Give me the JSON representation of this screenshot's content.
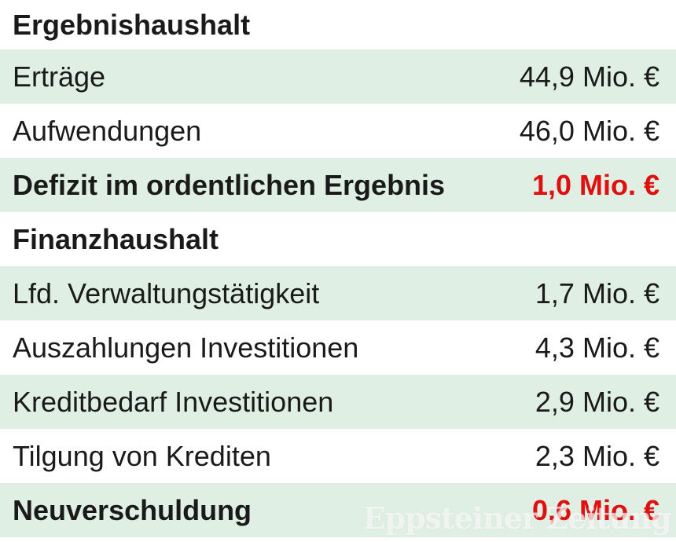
{
  "colors": {
    "row_green": "#e0efe4",
    "text_black": "#1a1a1a",
    "negative_red": "#e01010",
    "watermark_white": "rgba(255,255,255,0.62)"
  },
  "table": {
    "rows": [
      {
        "label": "Ergebnishaushalt",
        "value": ""
      },
      {
        "label": "Erträge",
        "value": "44,9 Mio. €"
      },
      {
        "label": "Aufwendungen",
        "value": "46,0 Mio. €"
      },
      {
        "label": "Defizit im ordentlichen Ergebnis",
        "value": "1,0 Mio. €"
      },
      {
        "label": "Finanzhaushalt",
        "value": ""
      },
      {
        "label": "Lfd. Verwaltungstätigkeit",
        "value": "1,7 Mio. €"
      },
      {
        "label": "Auszahlungen Investitionen",
        "value": "4,3 Mio. €"
      },
      {
        "label": "Kreditbedarf Investitionen",
        "value": "2,9 Mio. €"
      },
      {
        "label": "Tilgung von Krediten",
        "value": "2,3 Mio. €"
      },
      {
        "label": "Neuverschuldung",
        "value": "0,6 Mio. €"
      }
    ]
  },
  "watermark": {
    "text": "Eppsteiner Zeitung"
  },
  "chart_data": {
    "type": "table",
    "unit": "Mio. €",
    "sections": [
      {
        "header": "Ergebnishaushalt",
        "rows": [
          {
            "label": "Erträge",
            "value": 44.9,
            "display": "44,9 Mio. €",
            "highlight": false
          },
          {
            "label": "Aufwendungen",
            "value": 46.0,
            "display": "46,0 Mio. €",
            "highlight": false
          },
          {
            "label": "Defizit im ordentlichen Ergebnis",
            "value": 1.0,
            "display": "1,0 Mio. €",
            "highlight": true
          }
        ]
      },
      {
        "header": "Finanzhaushalt",
        "rows": [
          {
            "label": "Lfd. Verwaltungstätigkeit",
            "value": 1.7,
            "display": "1,7 Mio. €",
            "highlight": false
          },
          {
            "label": "Auszahlungen Investitionen",
            "value": 4.3,
            "display": "4,3 Mio. €",
            "highlight": false
          },
          {
            "label": "Kreditbedarf Investitionen",
            "value": 2.9,
            "display": "2,9 Mio. €",
            "highlight": false
          },
          {
            "label": "Tilgung von Krediten",
            "value": 2.3,
            "display": "2,3 Mio. €",
            "highlight": false
          },
          {
            "label": "Neuverschuldung",
            "value": 0.6,
            "display": "0,6 Mio. €",
            "highlight": true
          }
        ]
      }
    ]
  }
}
